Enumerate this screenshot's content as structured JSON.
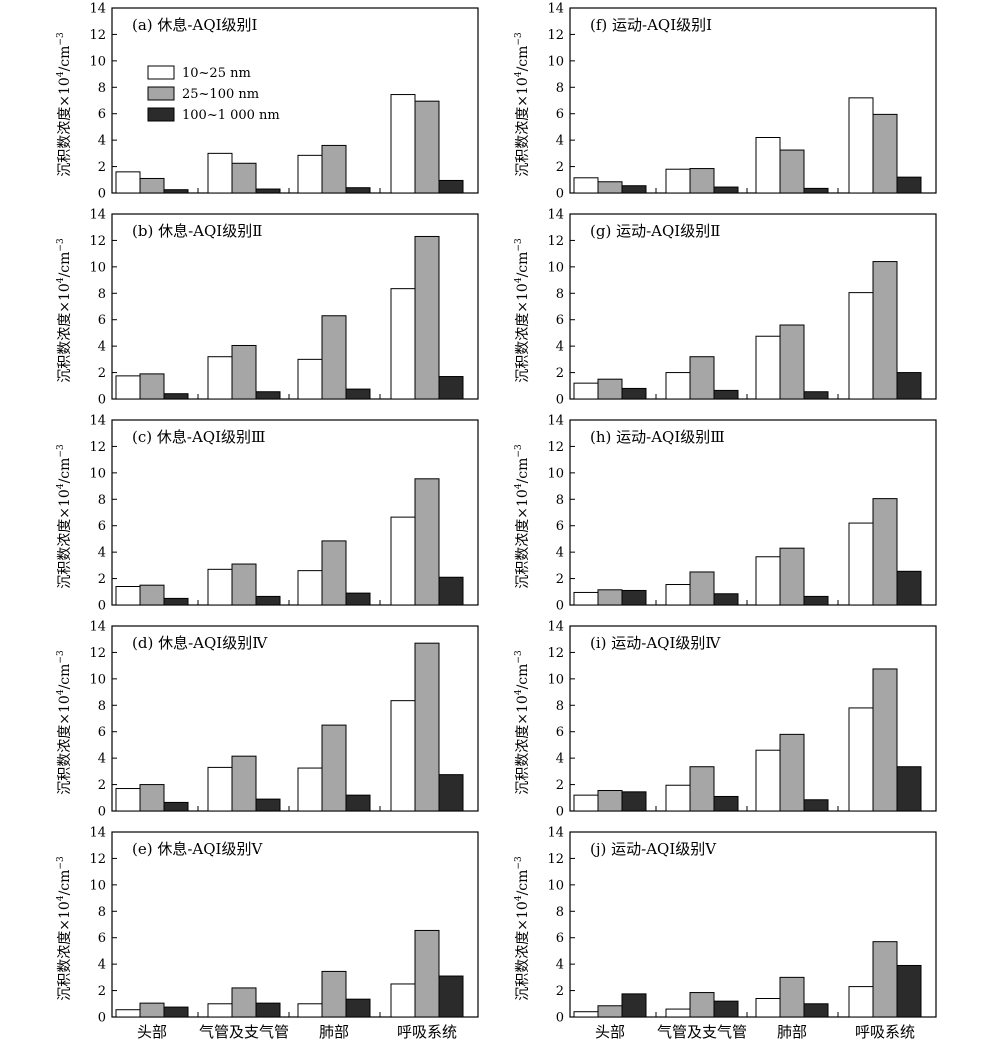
{
  "figure": {
    "ylabel_prefix": "沉积数浓度×10",
    "ylabel_exp1": "4",
    "ylabel_mid": "/cm",
    "ylabel_exp2": "−3",
    "categories": [
      "头部",
      "气管及支气管",
      "肺部",
      "呼吸系统"
    ],
    "legend": [
      "10~25 nm",
      "25~100 nm",
      "100~1 000 nm"
    ],
    "series_colors": [
      "#ffffff",
      "#a6a6a6",
      "#2b2b2b"
    ],
    "ylim": [
      0,
      14
    ],
    "yticks": [
      "0",
      "2",
      "4",
      "6",
      "8",
      "10",
      "12",
      "14"
    ]
  },
  "chart_data": [
    {
      "type": "bar",
      "title": "(a) 休息-AQI级别Ⅰ",
      "categories": [
        "头部",
        "气管及支气管",
        "肺部",
        "呼吸系统"
      ],
      "series": [
        {
          "name": "10~25 nm",
          "values": [
            1.6,
            3.0,
            2.85,
            7.45
          ]
        },
        {
          "name": "25~100 nm",
          "values": [
            1.1,
            2.25,
            3.6,
            6.95
          ]
        },
        {
          "name": "100~1 000 nm",
          "values": [
            0.25,
            0.3,
            0.4,
            0.95
          ]
        }
      ],
      "ylim": [
        0,
        14
      ]
    },
    {
      "type": "bar",
      "title": "(b) 休息-AQI级别Ⅱ",
      "categories": [
        "头部",
        "气管及支气管",
        "肺部",
        "呼吸系统"
      ],
      "series": [
        {
          "name": "10~25 nm",
          "values": [
            1.75,
            3.2,
            3.0,
            8.35
          ]
        },
        {
          "name": "25~100 nm",
          "values": [
            1.9,
            4.05,
            6.3,
            12.3
          ]
        },
        {
          "name": "100~1 000 nm",
          "values": [
            0.4,
            0.55,
            0.75,
            1.7
          ]
        }
      ],
      "ylim": [
        0,
        14
      ]
    },
    {
      "type": "bar",
      "title": "(c) 休息-AQI级别Ⅲ",
      "categories": [
        "头部",
        "气管及支气管",
        "肺部",
        "呼吸系统"
      ],
      "series": [
        {
          "name": "10~25 nm",
          "values": [
            1.4,
            2.7,
            2.6,
            6.65
          ]
        },
        {
          "name": "25~100 nm",
          "values": [
            1.5,
            3.1,
            4.85,
            9.55
          ]
        },
        {
          "name": "100~1 000 nm",
          "values": [
            0.5,
            0.65,
            0.9,
            2.1
          ]
        }
      ],
      "ylim": [
        0,
        14
      ]
    },
    {
      "type": "bar",
      "title": "(d) 休息-AQI级别Ⅳ",
      "categories": [
        "头部",
        "气管及支气管",
        "肺部",
        "呼吸系统"
      ],
      "series": [
        {
          "name": "10~25 nm",
          "values": [
            1.7,
            3.3,
            3.25,
            8.35
          ]
        },
        {
          "name": "25~100 nm",
          "values": [
            2.0,
            4.15,
            6.5,
            12.7
          ]
        },
        {
          "name": "100~1 000 nm",
          "values": [
            0.65,
            0.9,
            1.2,
            2.75
          ]
        }
      ],
      "ylim": [
        0,
        14
      ]
    },
    {
      "type": "bar",
      "title": "(e) 休息-AQI级别Ⅴ",
      "categories": [
        "头部",
        "气管及支气管",
        "肺部",
        "呼吸系统"
      ],
      "series": [
        {
          "name": "10~25 nm",
          "values": [
            0.55,
            1.0,
            1.0,
            2.5
          ]
        },
        {
          "name": "25~100 nm",
          "values": [
            1.05,
            2.2,
            3.45,
            6.55
          ]
        },
        {
          "name": "100~1 000 nm",
          "values": [
            0.75,
            1.05,
            1.35,
            3.1
          ]
        }
      ],
      "ylim": [
        0,
        14
      ]
    },
    {
      "type": "bar",
      "title": "(f) 运动-AQI级别Ⅰ",
      "categories": [
        "头部",
        "气管及支气管",
        "肺部",
        "呼吸系统"
      ],
      "series": [
        {
          "name": "10~25 nm",
          "values": [
            1.15,
            1.8,
            4.2,
            7.2
          ]
        },
        {
          "name": "25~100 nm",
          "values": [
            0.85,
            1.85,
            3.25,
            5.95
          ]
        },
        {
          "name": "100~1 000 nm",
          "values": [
            0.55,
            0.45,
            0.35,
            1.2
          ]
        }
      ],
      "ylim": [
        0,
        14
      ]
    },
    {
      "type": "bar",
      "title": "(g) 运动-AQI级别Ⅱ",
      "categories": [
        "头部",
        "气管及支气管",
        "肺部",
        "呼吸系统"
      ],
      "series": [
        {
          "name": "10~25 nm",
          "values": [
            1.2,
            2.0,
            4.75,
            8.05
          ]
        },
        {
          "name": "25~100 nm",
          "values": [
            1.5,
            3.2,
            5.6,
            10.4
          ]
        },
        {
          "name": "100~1 000 nm",
          "values": [
            0.8,
            0.65,
            0.55,
            2.0
          ]
        }
      ],
      "ylim": [
        0,
        14
      ]
    },
    {
      "type": "bar",
      "title": "(h) 运动-AQI级别Ⅲ",
      "categories": [
        "头部",
        "气管及支气管",
        "肺部",
        "呼吸系统"
      ],
      "series": [
        {
          "name": "10~25 nm",
          "values": [
            0.95,
            1.55,
            3.65,
            6.2
          ]
        },
        {
          "name": "25~100 nm",
          "values": [
            1.15,
            2.5,
            4.3,
            8.05
          ]
        },
        {
          "name": "100~1 000 nm",
          "values": [
            1.1,
            0.85,
            0.65,
            2.55
          ]
        }
      ],
      "ylim": [
        0,
        14
      ]
    },
    {
      "type": "bar",
      "title": "(i) 运动-AQI级别Ⅳ",
      "categories": [
        "头部",
        "气管及支气管",
        "肺部",
        "呼吸系统"
      ],
      "series": [
        {
          "name": "10~25 nm",
          "values": [
            1.2,
            1.95,
            4.6,
            7.8
          ]
        },
        {
          "name": "25~100 nm",
          "values": [
            1.55,
            3.35,
            5.8,
            10.75
          ]
        },
        {
          "name": "100~1 000 nm",
          "values": [
            1.45,
            1.1,
            0.85,
            3.35
          ]
        }
      ],
      "ylim": [
        0,
        14
      ]
    },
    {
      "type": "bar",
      "title": "(j) 运动-AQI级别Ⅴ",
      "categories": [
        "头部",
        "气管及支气管",
        "肺部",
        "呼吸系统"
      ],
      "series": [
        {
          "name": "10~25 nm",
          "values": [
            0.4,
            0.6,
            1.4,
            2.3
          ]
        },
        {
          "name": "25~100 nm",
          "values": [
            0.85,
            1.85,
            3.0,
            5.7
          ]
        },
        {
          "name": "100~1 000 nm",
          "values": [
            1.75,
            1.2,
            1.0,
            3.9
          ]
        }
      ],
      "ylim": [
        0,
        14
      ]
    }
  ]
}
